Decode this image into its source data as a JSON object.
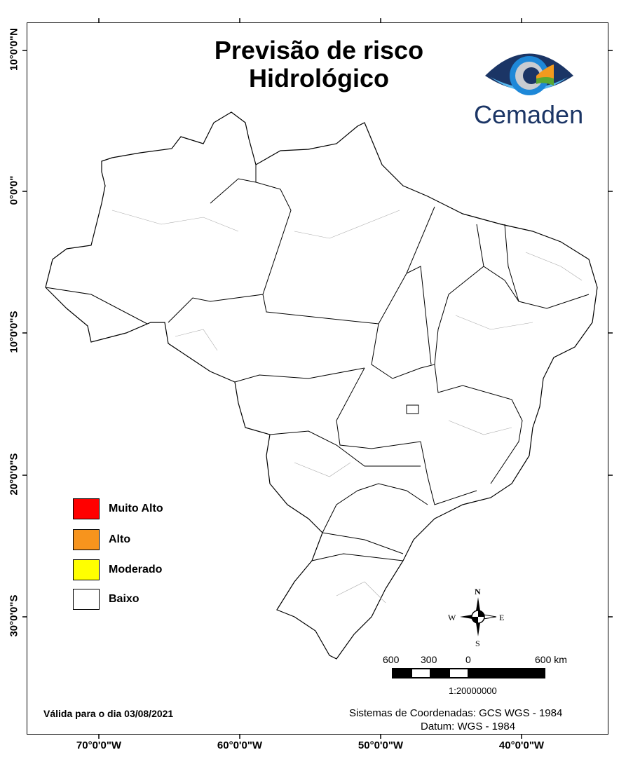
{
  "title_line1": "Previsão de risco",
  "title_line2": "Hidrológico",
  "logo": {
    "text": "Cemaden",
    "colors": {
      "dark": "#1b3565",
      "blue": "#1e88d8",
      "light": "#58b8ee",
      "orange": "#f39a1e",
      "green": "#5aa832"
    }
  },
  "lat_labels": [
    "10°0'0\"N",
    "0°0'0\"",
    "10°0'0\"S",
    "20°0'0\"S",
    "30°0'0\"S"
  ],
  "lon_labels": [
    "70°0'0\"W",
    "60°0'0\"W",
    "50°0'0\"W",
    "40°0'0\"W"
  ],
  "legend": [
    {
      "label": "Muito Alto",
      "color": "#ff0000"
    },
    {
      "label": "Alto",
      "color": "#f7941d"
    },
    {
      "label": "Moderado",
      "color": "#ffff00"
    },
    {
      "label": "Baixo",
      "color": "#ffffff"
    }
  ],
  "compass": {
    "n": "N",
    "s": "S",
    "e": "E",
    "w": "W"
  },
  "scale": {
    "labels": [
      "600",
      "300",
      "0",
      "600 km"
    ],
    "ratio": "1:20000000"
  },
  "valid_text": "Válida para o dia 03/08/2021",
  "coord_system": "Sistemas de Coordenadas: GCS WGS - 1984",
  "datum": "Datum: WGS - 1984"
}
